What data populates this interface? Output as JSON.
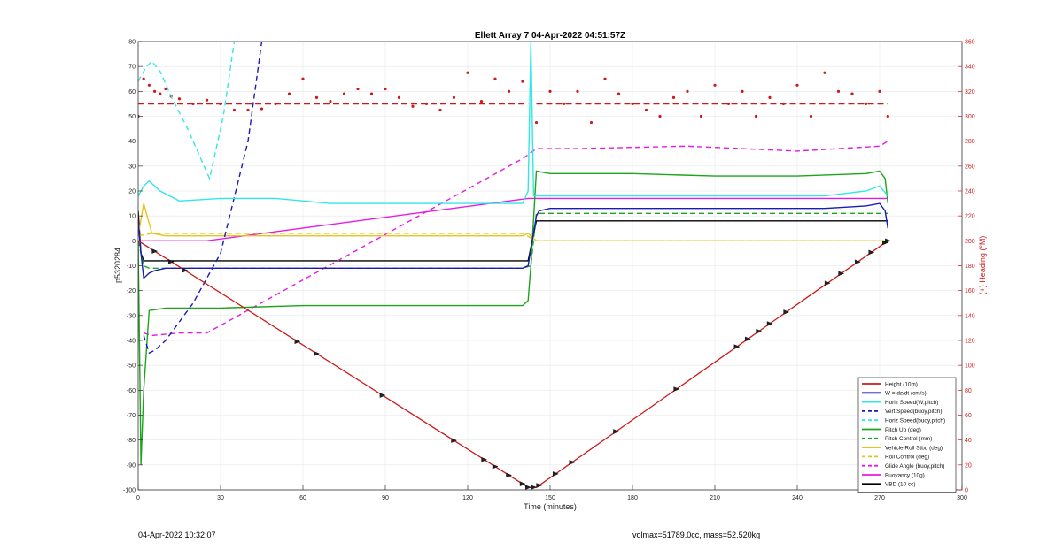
{
  "footer": {
    "timestamp": "04-Apr-2022 10:32:07",
    "vol_mass": "volmax=51789.0cc, mass=52.520kg"
  },
  "chart_data": {
    "type": "line",
    "title": "Ellett Array 7 04-Apr-2022 04:51:57Z",
    "xlabel": "Time (minutes)",
    "ylabel_left": "p5320284",
    "ylabel_right": "(+) Heading (°M)",
    "xlim": [
      0,
      300
    ],
    "ylim_left": [
      -100,
      80
    ],
    "ylim_right": [
      0,
      360
    ],
    "xticks": [
      0,
      30,
      60,
      90,
      120,
      150,
      180,
      210,
      240,
      270,
      300
    ],
    "yticks_left": [
      -100,
      -90,
      -80,
      -70,
      -60,
      -50,
      -40,
      -30,
      -20,
      -10,
      0,
      10,
      20,
      30,
      40,
      50,
      60,
      70,
      80
    ],
    "yticks_right": [
      0,
      20,
      40,
      60,
      80,
      100,
      120,
      140,
      160,
      180,
      200,
      220,
      240,
      260,
      280,
      300,
      320,
      340,
      360
    ],
    "grid": true,
    "legend_position": "bottom-right",
    "colors": {
      "red": "#cc1a1a",
      "blue": "#1a1ab8",
      "cyan": "#33e6e6",
      "green": "#1aa51a",
      "yellow": "#e6c31a",
      "magenta": "#e61ae6",
      "black": "#000000",
      "right_axis": "#cc1a1a"
    },
    "series": [
      {
        "name": "Height (10m)",
        "color": "red",
        "dash": "solid",
        "x": [
          0,
          142,
          145,
          273
        ],
        "y": [
          0,
          -99,
          -99,
          0
        ]
      },
      {
        "name": "W = dz/dt (cm/s)",
        "color": "blue",
        "dash": "solid",
        "x": [
          0,
          1,
          2,
          4,
          6,
          10,
          20,
          40,
          60,
          80,
          100,
          120,
          140,
          142,
          145,
          146,
          150,
          170,
          190,
          210,
          230,
          250,
          265,
          270,
          272,
          273
        ],
        "y": [
          8,
          -5,
          -15,
          -13,
          -12,
          -11,
          -11,
          -11,
          -11,
          -11,
          -11,
          -11,
          -11,
          -10,
          10,
          12,
          13,
          13,
          13,
          13,
          13,
          13,
          14,
          15,
          12,
          5
        ]
      },
      {
        "name": "Horiz Speed(W,pitch)",
        "color": "cyan",
        "dash": "solid",
        "x": [
          0,
          2,
          4,
          8,
          15,
          30,
          50,
          70,
          90,
          110,
          130,
          140,
          142,
          143,
          144,
          145,
          150,
          170,
          190,
          210,
          230,
          250,
          265,
          270,
          273
        ],
        "y": [
          18,
          22,
          24,
          20,
          16,
          17,
          17,
          15,
          15,
          15,
          15,
          15,
          20,
          80,
          18,
          18,
          18,
          18,
          18,
          18,
          18,
          18,
          20,
          22,
          18
        ]
      },
      {
        "name": "Vert Speed(buoy,pitch)",
        "color": "blue",
        "dash": "dashed",
        "x": [
          2,
          4,
          6,
          10,
          20,
          30,
          40,
          45
        ],
        "y": [
          -38,
          -45,
          -44,
          -40,
          -25,
          -5,
          40,
          80
        ]
      },
      {
        "name": "Horiz Speed(buoy,pitch)",
        "color": "cyan",
        "dash": "dashed",
        "x": [
          0,
          3,
          5,
          8,
          12,
          18,
          26,
          31,
          35
        ],
        "y": [
          64,
          70,
          72,
          68,
          58,
          45,
          25,
          50,
          80
        ]
      },
      {
        "name": "Pitch Up (deg)",
        "color": "green",
        "dash": "solid",
        "x": [
          0,
          1,
          2,
          4,
          10,
          30,
          60,
          90,
          120,
          140,
          142,
          143,
          145,
          150,
          180,
          210,
          240,
          265,
          270,
          272,
          273
        ],
        "y": [
          0,
          -90,
          -60,
          -28,
          -27,
          -27,
          -26,
          -26,
          -26,
          -26,
          -24,
          -10,
          28,
          27,
          27,
          26,
          26,
          27,
          28,
          25,
          15
        ]
      },
      {
        "name": "Pitch Control (mm)",
        "color": "green",
        "dash": "dashed",
        "x": [
          0,
          2,
          4,
          140,
          143,
          145,
          273
        ],
        "y": [
          0,
          -10,
          -11,
          -11,
          -10,
          11,
          11
        ]
      },
      {
        "name": "Vehicle Roll Stbd (deg)",
        "color": "yellow",
        "dash": "solid",
        "x": [
          0,
          2,
          5,
          10,
          20,
          60,
          100,
          140,
          142,
          145,
          150,
          200,
          250,
          273
        ],
        "y": [
          2,
          15,
          3,
          2,
          2,
          2,
          2,
          2,
          3,
          0,
          0,
          0,
          0,
          0
        ]
      },
      {
        "name": "Roll Control (deg)",
        "color": "yellow",
        "dash": "dashed",
        "x": [
          0,
          5,
          10,
          60,
          100,
          140,
          145,
          200,
          250,
          273
        ],
        "y": [
          2,
          3,
          3,
          3,
          3,
          3,
          0,
          0,
          0,
          0
        ]
      },
      {
        "name": "Glide Angle (buoy,pitch)",
        "color": "magenta",
        "dash": "dashed",
        "x": [
          2,
          5,
          15,
          25,
          140,
          145,
          160,
          200,
          240,
          270,
          273
        ],
        "y": [
          -37,
          -38,
          -37,
          -37,
          33,
          37,
          37,
          38,
          36,
          38,
          40
        ]
      },
      {
        "name": "Buoyancy (10g)",
        "color": "magenta",
        "dash": "solid",
        "x": [
          0,
          5,
          25,
          142,
          145,
          273
        ],
        "y": [
          0,
          0,
          0,
          17,
          17,
          17
        ]
      },
      {
        "name": "VBD (10 cc)",
        "color": "black",
        "dash": "solid",
        "x": [
          0,
          1,
          2,
          4,
          140,
          142,
          145,
          273
        ],
        "y": [
          12,
          -5,
          -8,
          -8,
          -8,
          -8,
          8,
          8
        ]
      }
    ],
    "heading": {
      "color": "red",
      "mean_dive": 310,
      "mean_climb": 310,
      "points_x": [
        0,
        2,
        4,
        6,
        8,
        10,
        12,
        15,
        20,
        25,
        30,
        35,
        40,
        45,
        50,
        55,
        60,
        65,
        70,
        75,
        80,
        85,
        90,
        95,
        100,
        105,
        110,
        115,
        120,
        125,
        130,
        135,
        140,
        145,
        150,
        155,
        160,
        165,
        170,
        175,
        180,
        185,
        190,
        195,
        200,
        205,
        210,
        215,
        220,
        225,
        230,
        235,
        240,
        245,
        250,
        255,
        260,
        265,
        270,
        273
      ],
      "points_y": [
        300,
        330,
        325,
        320,
        318,
        322,
        316,
        314,
        310,
        313,
        310,
        305,
        305,
        306,
        310,
        318,
        330,
        315,
        312,
        318,
        322,
        318,
        322,
        315,
        308,
        310,
        305,
        315,
        335,
        312,
        330,
        320,
        328,
        295,
        320,
        310,
        320,
        295,
        330,
        318,
        310,
        305,
        300,
        315,
        320,
        300,
        325,
        310,
        320,
        300,
        315,
        310,
        325,
        300,
        335,
        320,
        318,
        310,
        320,
        300
      ]
    },
    "ticks_text": {
      "x": [
        "0",
        "30",
        "60",
        "90",
        "120",
        "150",
        "180",
        "210",
        "240",
        "270",
        "300"
      ],
      "left": [
        "-100",
        "-90",
        "-80",
        "-70",
        "-60",
        "-50",
        "-40",
        "-30",
        "-20",
        "-10",
        "0",
        "10",
        "20",
        "30",
        "40",
        "50",
        "60",
        "70",
        "80"
      ],
      "right": [
        "0",
        "20",
        "40",
        "60",
        "80",
        "100",
        "120",
        "140",
        "160",
        "180",
        "200",
        "220",
        "240",
        "260",
        "280",
        "300",
        "320",
        "340",
        "360"
      ]
    }
  }
}
